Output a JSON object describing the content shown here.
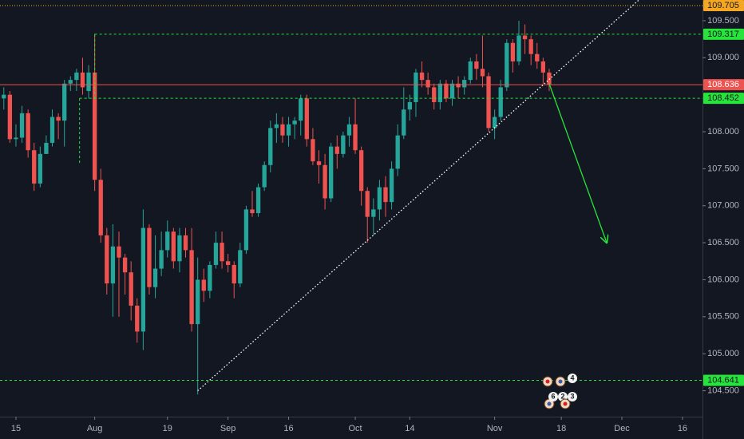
{
  "chart_data": {
    "type": "candlestick",
    "up_color": "#26a69a",
    "down_color": "#ef5350",
    "grid": false,
    "ylim": [
      104.15,
      109.78
    ],
    "xlim": [
      -0.63,
      115.3
    ],
    "yticks": [
      {
        "value": 109.5,
        "label": "109.500"
      },
      {
        "value": 109,
        "label": "109.000"
      },
      {
        "value": 108,
        "label": "108.000"
      },
      {
        "value": 107.5,
        "label": "107.500"
      },
      {
        "value": 107,
        "label": "107.000"
      },
      {
        "value": 106.5,
        "label": "106.500"
      },
      {
        "value": 106,
        "label": "106.000"
      },
      {
        "value": 105.5,
        "label": "105.500"
      },
      {
        "value": 105,
        "label": "105.000"
      },
      {
        "value": 104.5,
        "label": "104.500"
      }
    ],
    "xticks": [
      {
        "value": 2,
        "label": "15"
      },
      {
        "value": 15,
        "label": "Aug"
      },
      {
        "value": 27,
        "label": "19"
      },
      {
        "value": 37,
        "label": "Sep"
      },
      {
        "value": 47,
        "label": "16"
      },
      {
        "value": 58,
        "label": "Oct"
      },
      {
        "value": 67,
        "label": "14"
      },
      {
        "value": 81,
        "label": "Nov"
      },
      {
        "value": 92,
        "label": "18"
      },
      {
        "value": 102,
        "label": "Dec"
      },
      {
        "value": 112,
        "label": "16"
      }
    ],
    "candles": {
      "open": [
        108.45,
        108.5,
        107.9,
        107.92,
        108.25,
        107.75,
        107.3,
        107.7,
        107.85,
        108.2,
        108.15,
        108.65,
        108.7,
        108.8,
        108.55,
        108.8,
        107.35,
        106.6,
        105.95,
        106.45,
        106.3,
        106.1,
        105.65,
        105.3,
        106.7,
        105.9,
        106.15,
        106.4,
        106.65,
        106.25,
        106.6,
        106.4,
        105.4,
        106.0,
        105.85,
        106.2,
        106.5,
        106.25,
        106.2,
        105.95,
        106.4,
        106.95,
        106.9,
        107.25,
        107.55,
        108.05,
        108.1,
        107.95,
        108.1,
        108.15,
        108.45,
        107.9,
        107.6,
        107.55,
        107.1,
        107.8,
        107.7,
        107.95,
        108.1,
        107.75,
        107.2,
        106.85,
        106.95,
        107.25,
        107.05,
        107.5,
        107.95,
        108.3,
        108.4,
        108.8,
        108.7,
        108.6,
        108.4,
        108.65,
        108.45,
        108.65,
        108.6,
        108.7,
        108.95,
        108.85,
        108.75,
        108.05,
        108.2,
        108.6,
        109.2,
        108.95,
        109.3,
        109.25,
        109.05,
        108.95,
        108.8
      ],
      "high": [
        108.6,
        108.55,
        108.1,
        108.35,
        108.3,
        107.85,
        107.8,
        107.95,
        108.3,
        108.25,
        108.7,
        108.75,
        108.85,
        109.0,
        108.9,
        109.32,
        107.5,
        106.7,
        106.75,
        106.65,
        106.35,
        106.25,
        105.75,
        106.95,
        106.75,
        106.6,
        106.65,
        106.8,
        106.7,
        106.7,
        106.7,
        106.7,
        106.3,
        106.15,
        106.25,
        106.65,
        106.65,
        106.35,
        106.25,
        106.5,
        107.0,
        107.2,
        107.3,
        107.6,
        108.15,
        108.25,
        108.2,
        108.2,
        108.2,
        108.5,
        108.5,
        108.05,
        107.75,
        107.7,
        107.85,
        107.95,
        108.0,
        108.2,
        108.45,
        107.8,
        107.25,
        107.1,
        107.35,
        107.4,
        107.6,
        108.1,
        108.6,
        108.5,
        108.85,
        108.95,
        108.8,
        108.65,
        108.7,
        108.7,
        108.7,
        108.75,
        108.75,
        109.0,
        109.05,
        109.3,
        108.8,
        108.3,
        108.7,
        109.25,
        109.25,
        109.5,
        109.45,
        109.3,
        109.2,
        109.0,
        108.85
      ],
      "low": [
        108.3,
        107.85,
        107.8,
        107.85,
        107.65,
        107.2,
        107.25,
        107.7,
        107.8,
        107.9,
        107.8,
        108.55,
        108.55,
        108.5,
        108.45,
        107.2,
        106.5,
        105.8,
        105.5,
        105.5,
        105.8,
        105.45,
        105.15,
        105.05,
        105.8,
        105.75,
        106.05,
        106.3,
        106.15,
        106.1,
        106.3,
        105.3,
        104.45,
        105.7,
        105.75,
        106.15,
        106.15,
        106.1,
        105.75,
        105.9,
        106.35,
        106.85,
        106.85,
        107.2,
        107.45,
        107.85,
        107.85,
        107.8,
        107.9,
        107.95,
        107.8,
        107.55,
        107.3,
        106.95,
        107.05,
        107.5,
        107.65,
        107.8,
        107.7,
        107.0,
        106.5,
        106.6,
        106.8,
        106.85,
        106.95,
        107.4,
        107.9,
        108.15,
        108.2,
        108.6,
        108.5,
        108.3,
        108.3,
        108.4,
        108.35,
        108.45,
        108.5,
        108.65,
        108.7,
        108.6,
        108.0,
        107.9,
        108.15,
        108.55,
        108.8,
        108.9,
        109.05,
        108.9,
        108.85,
        108.65,
        108.55
      ],
      "close": [
        108.5,
        107.9,
        107.92,
        108.25,
        107.75,
        107.3,
        107.7,
        107.85,
        108.2,
        108.15,
        108.65,
        108.7,
        108.8,
        108.6,
        108.8,
        107.35,
        106.6,
        105.95,
        106.45,
        106.3,
        106.1,
        105.65,
        105.3,
        106.7,
        105.9,
        106.15,
        106.4,
        106.65,
        106.25,
        106.6,
        106.4,
        105.4,
        106.0,
        105.85,
        106.2,
        106.5,
        106.25,
        106.2,
        105.95,
        106.4,
        106.95,
        106.9,
        107.25,
        107.55,
        108.05,
        108.1,
        107.95,
        108.1,
        108.15,
        108.45,
        107.9,
        107.6,
        107.55,
        107.1,
        107.8,
        107.7,
        107.95,
        108.1,
        107.75,
        107.2,
        106.85,
        106.95,
        107.25,
        107.05,
        107.5,
        107.95,
        108.3,
        108.4,
        108.8,
        108.7,
        108.6,
        108.4,
        108.65,
        108.45,
        108.65,
        108.6,
        108.7,
        108.95,
        108.85,
        108.75,
        108.05,
        108.2,
        108.6,
        109.2,
        108.95,
        109.3,
        109.25,
        109.05,
        108.95,
        108.8,
        108.64
      ]
    },
    "levels": [
      {
        "value": 109.705,
        "color": "#f5a623",
        "style": "dotted"
      },
      {
        "value": 109.317,
        "color": "#27e43a",
        "style": "dashed",
        "x_start": 15
      },
      {
        "value": 108.636,
        "color": "#ef5350",
        "style": "solid"
      },
      {
        "value": 108.452,
        "color": "#27e43a",
        "style": "dashed",
        "x_start": 12.5
      },
      {
        "value": 104.641,
        "color": "#27e43a",
        "style": "dashed"
      }
    ],
    "trendline": {
      "x": [
        32,
        104.8
      ],
      "y": [
        104.5,
        109.78
      ],
      "color": "#ffffff"
    },
    "arrow": {
      "x": [
        90,
        99.5
      ],
      "y": [
        108.65,
        106.5
      ],
      "color": "#27e43a"
    },
    "event_badges": [
      4,
      6,
      2,
      3
    ]
  }
}
